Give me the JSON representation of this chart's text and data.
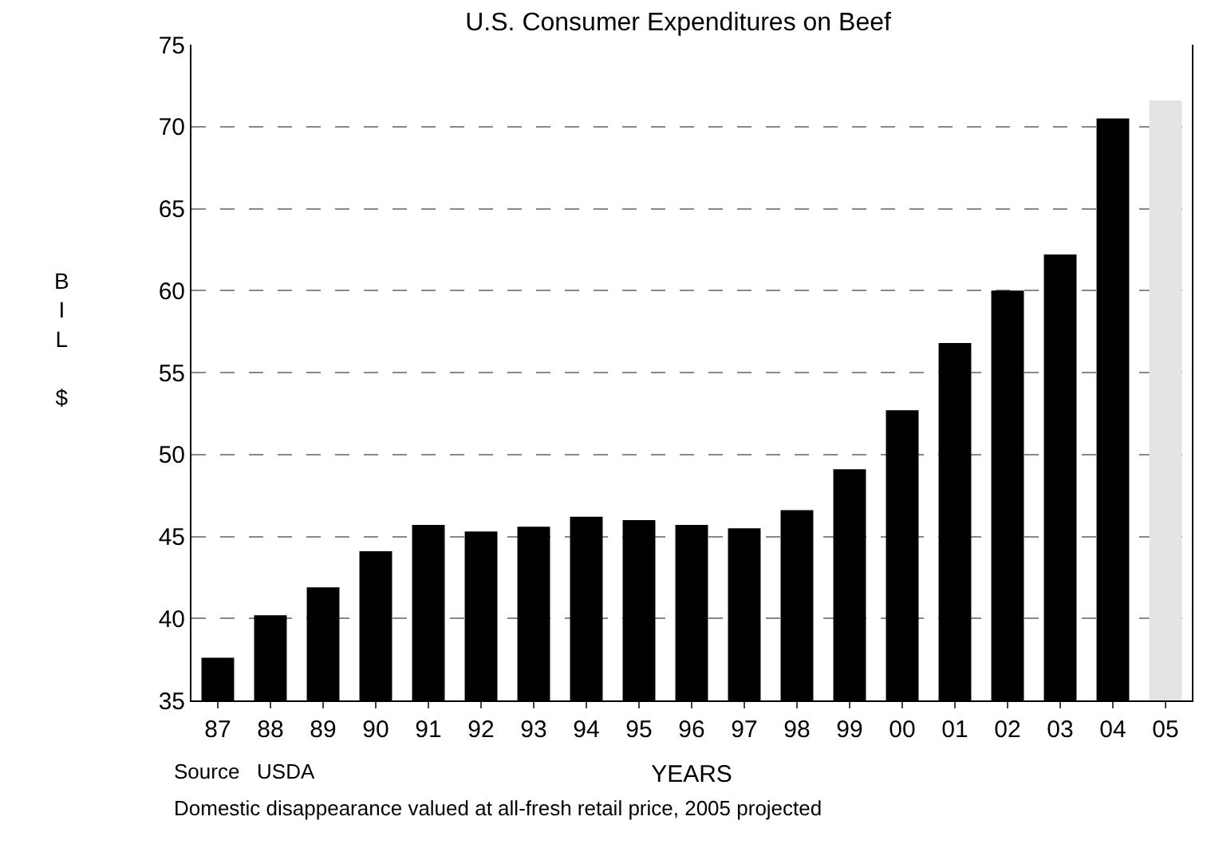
{
  "chart_data": {
    "type": "bar",
    "title": "U.S. Consumer Expenditures on Beef",
    "xlabel": "YEARS",
    "ylabel": "BIL $",
    "categories": [
      "87",
      "88",
      "89",
      "90",
      "91",
      "92",
      "93",
      "94",
      "95",
      "96",
      "97",
      "98",
      "99",
      "00",
      "01",
      "02",
      "03",
      "04",
      "05"
    ],
    "values": [
      37.6,
      40.2,
      41.9,
      44.1,
      45.7,
      45.3,
      45.6,
      46.2,
      46.0,
      45.7,
      45.5,
      46.6,
      49.1,
      52.7,
      56.8,
      60.0,
      62.2,
      70.5,
      71.6
    ],
    "colors": [
      "#000000",
      "#000000",
      "#000000",
      "#000000",
      "#000000",
      "#000000",
      "#000000",
      "#000000",
      "#000000",
      "#000000",
      "#000000",
      "#000000",
      "#000000",
      "#000000",
      "#000000",
      "#000000",
      "#000000",
      "#000000",
      "#e4e4e4"
    ],
    "ylim": [
      35,
      75
    ],
    "yticks": [
      35,
      40,
      45,
      50,
      55,
      60,
      65,
      70,
      75
    ],
    "grid": "y",
    "annotations": [
      "Source   USDA",
      "Domestic disappearance valued at all-fresh retail price, 2005 projected"
    ]
  }
}
